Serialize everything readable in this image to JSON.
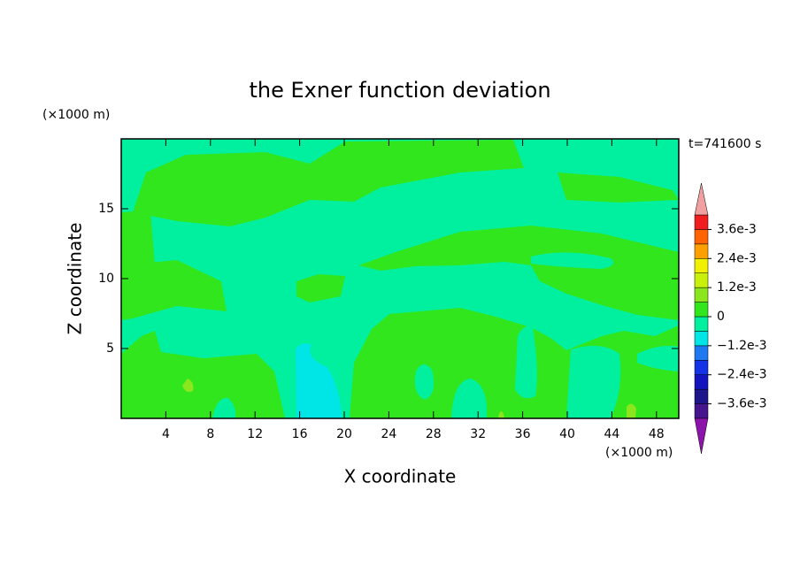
{
  "chart_data": {
    "type": "contour",
    "title": "the Exner function deviation",
    "subtitle": "t=741600 s",
    "x_label": "X coordinate",
    "y_label": "Z coordinate",
    "x_unit": "(×1000 m)",
    "y_unit": "(×1000 m)",
    "xlim": [
      0,
      50
    ],
    "ylim": [
      0,
      20
    ],
    "xticks": [
      4,
      8,
      12,
      16,
      20,
      24,
      28,
      32,
      36,
      40,
      44,
      48
    ],
    "yticks": [
      5,
      10,
      15
    ],
    "levels": [
      -0.0042,
      -0.0036,
      -0.003,
      -0.0024,
      -0.0018,
      -0.0012,
      -0.0006,
      0,
      0.0006,
      0.0012,
      0.0018,
      0.0024,
      0.003,
      0.0036,
      0.0042
    ],
    "colors": [
      "#46148c",
      "#1e148c",
      "#1414be",
      "#1432e6",
      "#1e78f0",
      "#00e6e6",
      "#00f0a0",
      "#32e61e",
      "#8ce61e",
      "#c8f00a",
      "#f0f000",
      "#ffa000",
      "#ff6400",
      "#f01e1e"
    ],
    "under_color": "#8c14aa",
    "over_color": "#f0a0a0",
    "colorbar_ticks": [
      {
        "value": 0.0036,
        "label": "3.6e-3"
      },
      {
        "value": 0.0024,
        "label": "2.4e-3"
      },
      {
        "value": 0.0012,
        "label": "1.2e-3"
      },
      0,
      {
        "value": -0.0012,
        "label": "−1.2e-3"
      },
      {
        "value": -0.0024,
        "label": "−2.4e-3"
      },
      {
        "value": -0.0036,
        "label": "−3.6e-3"
      }
    ]
  }
}
